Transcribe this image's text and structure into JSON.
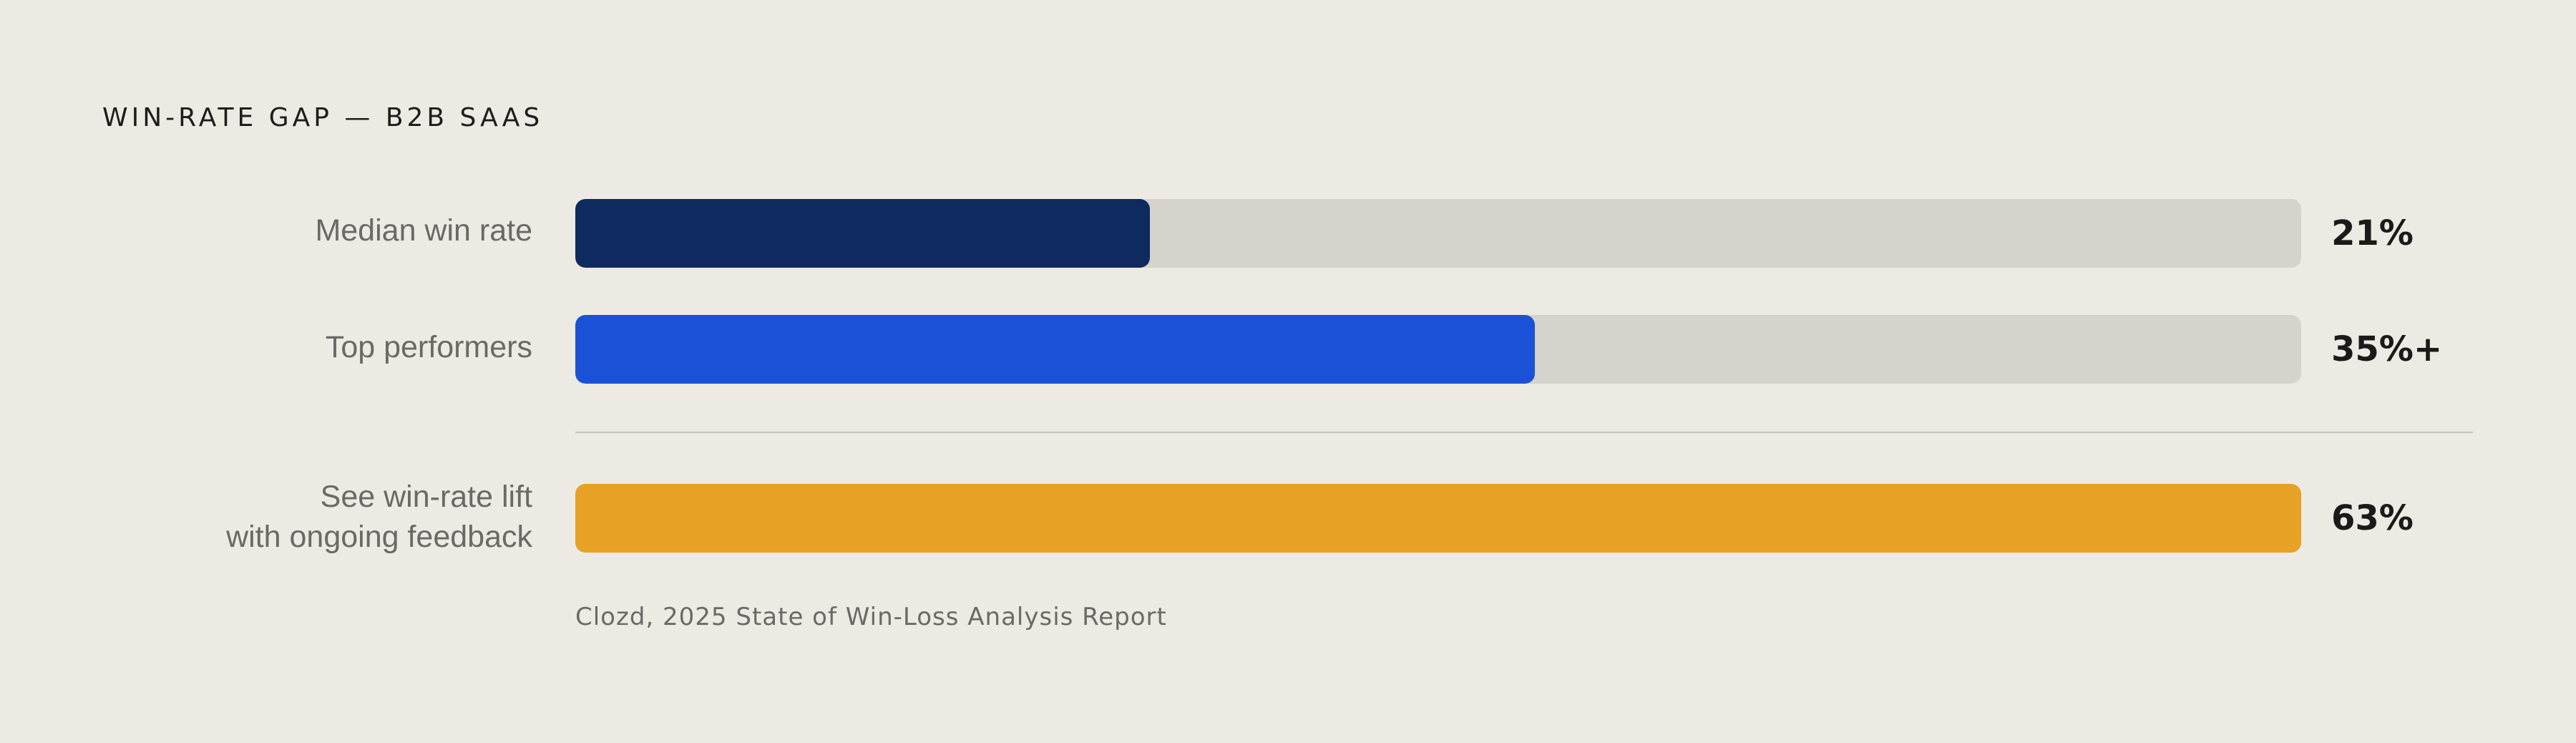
{
  "title": "WIN-RATE GAP — B2B SAAS",
  "source": "Clozd, 2025 State of Win-Loss Analysis Report",
  "colors": {
    "track": "#D6D3CC",
    "median": "#0F2A5F",
    "top": "#1B51D6",
    "lift": "#E7A124"
  },
  "chart_data": {
    "type": "bar",
    "orientation": "horizontal",
    "title": "WIN-RATE GAP — B2B SAAS",
    "categories": [
      "Median win rate",
      "Top performers",
      "See win-rate lift with ongoing feedback"
    ],
    "values": [
      21,
      35,
      63
    ],
    "value_labels": [
      "21%",
      "35%+",
      "63%"
    ],
    "colors": [
      "#0F2A5F",
      "#1B51D6",
      "#E7A124"
    ],
    "unit": "%",
    "grid": false
  },
  "rows": [
    {
      "label_lines": [
        "Median win rate"
      ],
      "value_label": "21%",
      "color": "#0F2A5F",
      "fill_fraction": 0.333
    },
    {
      "label_lines": [
        "Top performers"
      ],
      "value_label": "35%+",
      "color": "#1B51D6",
      "fill_fraction": 0.556
    },
    {
      "label_lines": [
        "See win-rate lift",
        "with ongoing feedback"
      ],
      "value_label": "63%",
      "color": "#E7A124",
      "fill_fraction": 1.0
    }
  ]
}
